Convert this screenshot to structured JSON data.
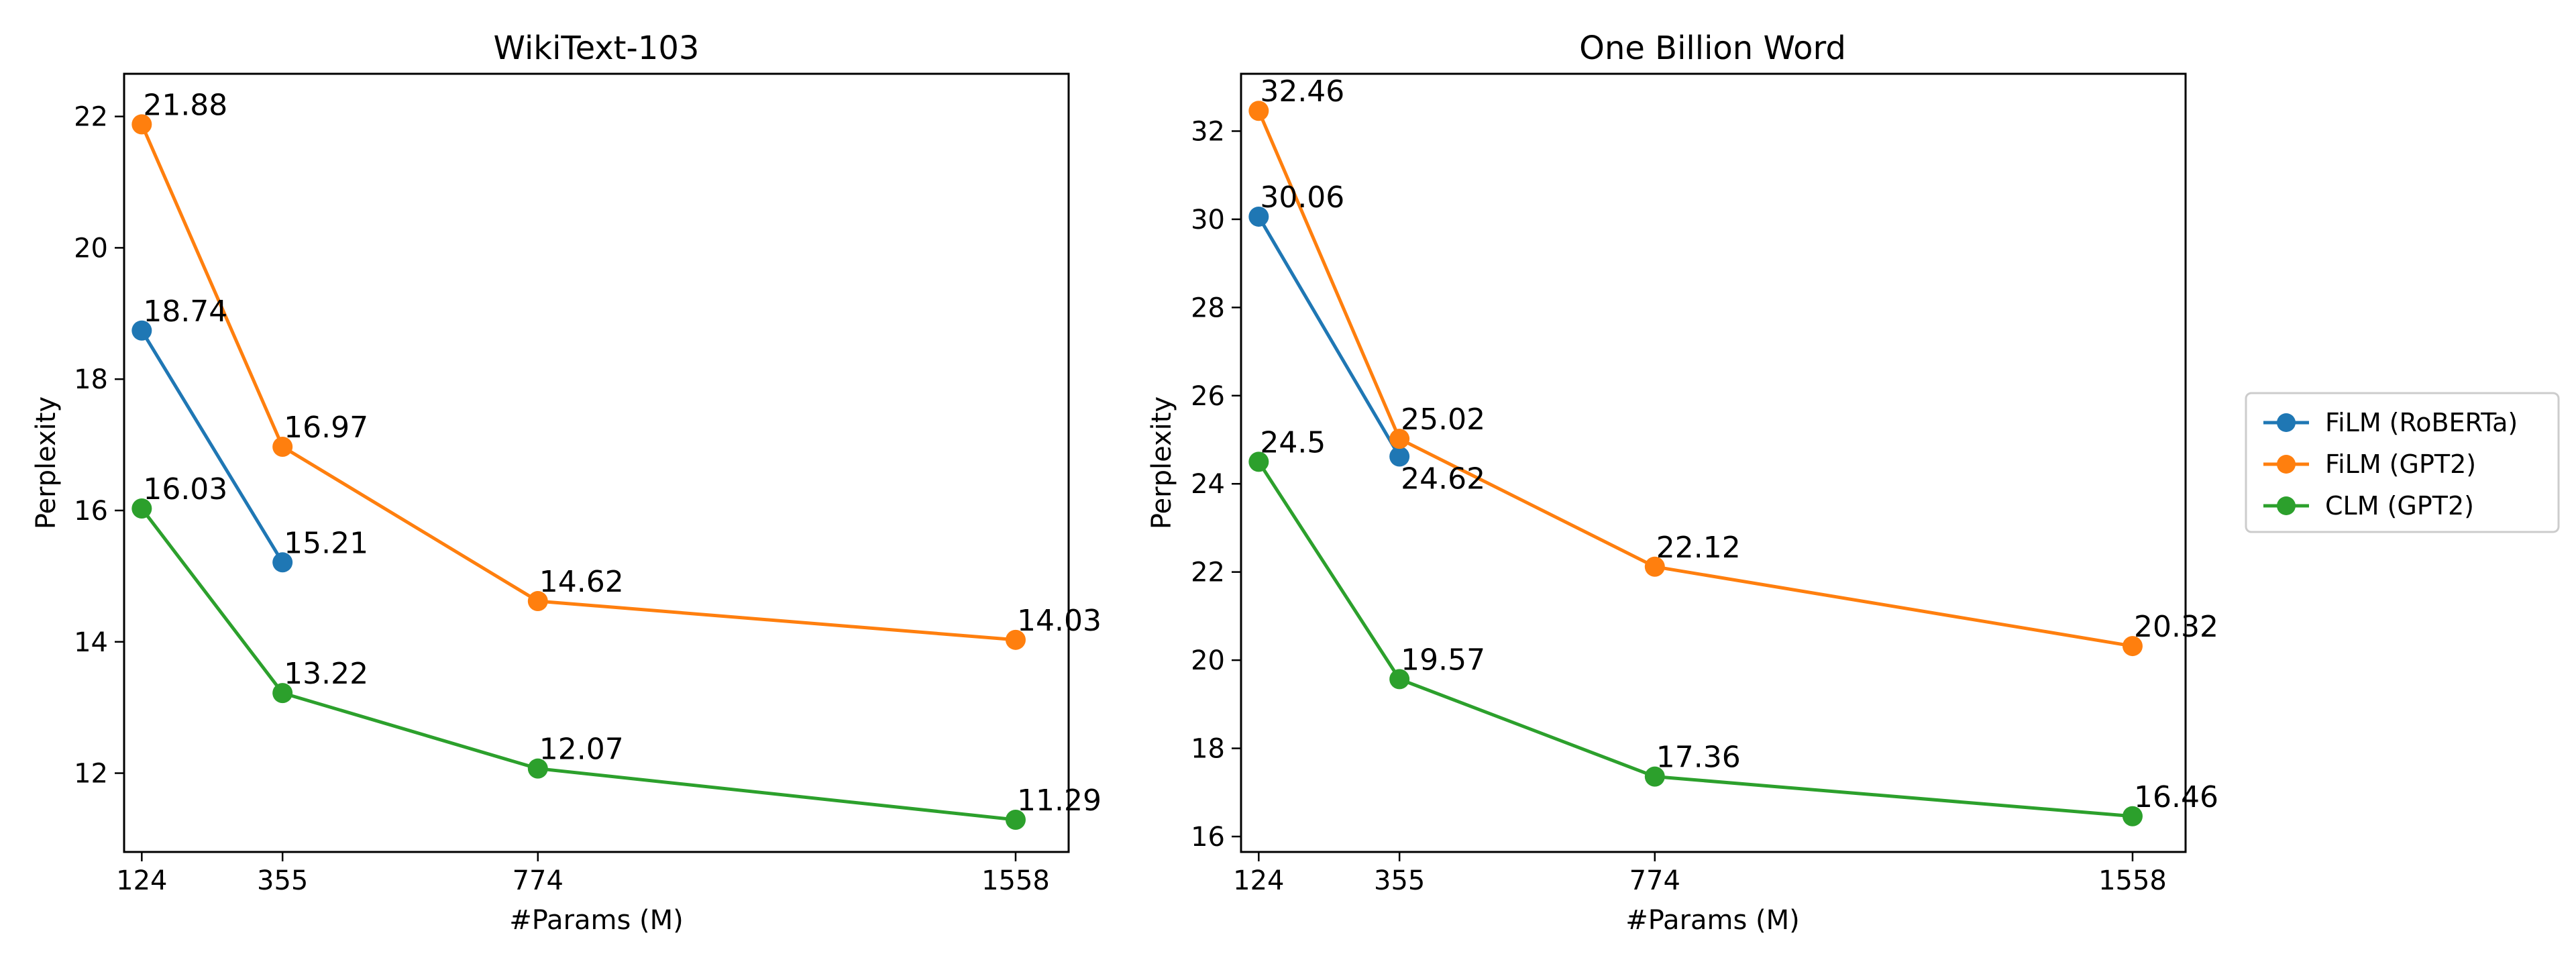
{
  "figure": {
    "legend_position": "right"
  },
  "chart_data": [
    {
      "type": "line",
      "title": "WikiText-103",
      "xlabel": "#Params (M)",
      "ylabel": "Perplexity",
      "categories": [
        124,
        355,
        774,
        1558
      ],
      "xlim": [
        95,
        1645
      ],
      "ylim": [
        10.8,
        22.65
      ],
      "yticks": [
        12,
        14,
        16,
        18,
        20,
        22
      ],
      "series": [
        {
          "name": "FiLM (RoBERTa)",
          "color": "#1f77b4",
          "x": [
            124,
            355
          ],
          "values": [
            18.74,
            15.21
          ],
          "labels": [
            "18.74",
            "15.21"
          ]
        },
        {
          "name": "FiLM (GPT2)",
          "color": "#ff7f0e",
          "x": [
            124,
            355,
            774,
            1558
          ],
          "values": [
            21.88,
            16.97,
            14.62,
            14.03
          ],
          "labels": [
            "21.88",
            "16.97",
            "14.62",
            "14.03"
          ]
        },
        {
          "name": "CLM (GPT2)",
          "color": "#2ca02c",
          "x": [
            124,
            355,
            774,
            1558
          ],
          "values": [
            16.03,
            13.22,
            12.07,
            11.29
          ],
          "labels": [
            "16.03",
            "13.22",
            "12.07",
            "11.29"
          ]
        }
      ]
    },
    {
      "type": "line",
      "title": "One Billion Word",
      "xlabel": "#Params (M)",
      "ylabel": "Perplexity",
      "categories": [
        124,
        355,
        774,
        1558
      ],
      "xlim": [
        95,
        1645
      ],
      "ylim": [
        15.65,
        33.3
      ],
      "yticks": [
        16,
        18,
        20,
        22,
        24,
        26,
        28,
        30,
        32
      ],
      "series": [
        {
          "name": "FiLM (RoBERTa)",
          "color": "#1f77b4",
          "x": [
            124,
            355
          ],
          "values": [
            30.06,
            24.62
          ],
          "labels": [
            "30.06",
            "24.62"
          ]
        },
        {
          "name": "FiLM (GPT2)",
          "color": "#ff7f0e",
          "x": [
            124,
            355,
            774,
            1558
          ],
          "values": [
            32.46,
            25.02,
            22.12,
            20.32
          ],
          "labels": [
            "32.46",
            "25.02",
            "22.12",
            "20.32"
          ]
        },
        {
          "name": "CLM (GPT2)",
          "color": "#2ca02c",
          "x": [
            124,
            355,
            774,
            1558
          ],
          "values": [
            24.5,
            19.57,
            17.36,
            16.46
          ],
          "labels": [
            "24.5",
            "19.57",
            "17.36",
            "16.46"
          ]
        }
      ]
    }
  ]
}
